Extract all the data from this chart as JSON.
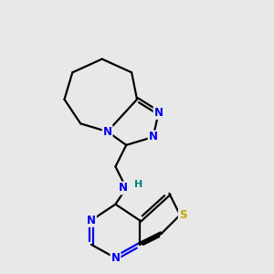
{
  "background_color": "#e8e8e8",
  "bond_color": "#000000",
  "N_color": "#0000ee",
  "S_color": "#bbaa00",
  "H_color": "#008080",
  "line_width": 1.6,
  "fig_size": [
    3.0,
    3.0
  ],
  "dpi": 100,
  "xlim": [
    0,
    10
  ],
  "ylim": [
    0,
    10
  ],
  "font_size": 8.5
}
